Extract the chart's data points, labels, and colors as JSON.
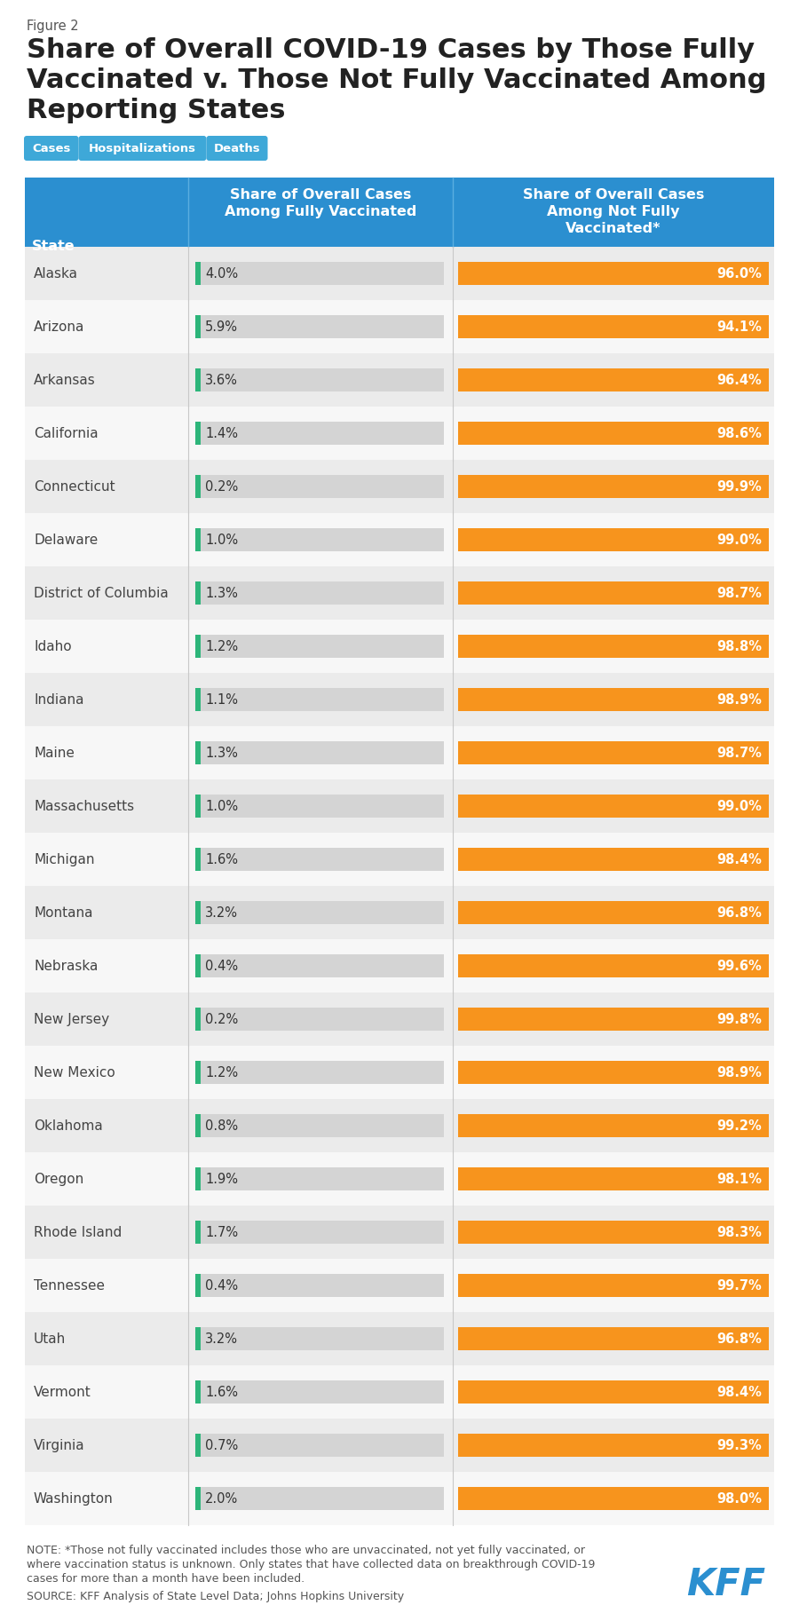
{
  "figure_label": "Figure 2",
  "title_lines": [
    "Share of Overall COVID-19 Cases by Those Fully",
    "Vaccinated v. Those Not Fully Vaccinated Among",
    "Reporting States"
  ],
  "tab_labels": [
    "Cases",
    "Hospitalizations",
    "Deaths"
  ],
  "tab_color": "#3ea8d8",
  "header_bg": "#2b8fd0",
  "col1_header": "State",
  "col2_header": "Share of Overall Cases\nAmong Fully Vaccinated",
  "col3_header": "Share of Overall Cases\nAmong Not Fully\nVaccinated*",
  "states": [
    "Alaska",
    "Arizona",
    "Arkansas",
    "California",
    "Connecticut",
    "Delaware",
    "District of Columbia",
    "Idaho",
    "Indiana",
    "Maine",
    "Massachusetts",
    "Michigan",
    "Montana",
    "Nebraska",
    "New Jersey",
    "New Mexico",
    "Oklahoma",
    "Oregon",
    "Rhode Island",
    "Tennessee",
    "Utah",
    "Vermont",
    "Virginia",
    "Washington"
  ],
  "fully_vacc": [
    4.0,
    5.9,
    3.6,
    1.4,
    0.2,
    1.0,
    1.3,
    1.2,
    1.1,
    1.3,
    1.0,
    1.6,
    3.2,
    0.4,
    0.2,
    1.2,
    0.8,
    1.9,
    1.7,
    0.4,
    3.2,
    1.6,
    0.7,
    2.0
  ],
  "not_fully_vacc": [
    96.0,
    94.1,
    96.4,
    98.6,
    99.9,
    99.0,
    98.7,
    98.8,
    98.9,
    98.7,
    99.0,
    98.4,
    96.8,
    99.6,
    99.8,
    98.9,
    99.2,
    98.1,
    98.3,
    99.7,
    96.8,
    98.4,
    99.3,
    98.0
  ],
  "green_color": "#2db57a",
  "orange_color": "#f7941d",
  "row_bg_light": "#ebebeb",
  "row_bg_white": "#f7f7f7",
  "note_line1": "NOTE: *Those not fully vaccinated includes those who are unvaccinated, not yet fully vaccinated, or",
  "note_line2": "where vaccination status is unknown. Only states that have collected data on breakthrough COVID-19",
  "note_line3": "cases for more than a month have been included.",
  "source_text": "SOURCE: KFF Analysis of State Level Data; Johns Hopkins University",
  "kff_color": "#2b8fd0",
  "bg_color": "#ffffff",
  "title_color": "#222222",
  "state_color": "#444444"
}
